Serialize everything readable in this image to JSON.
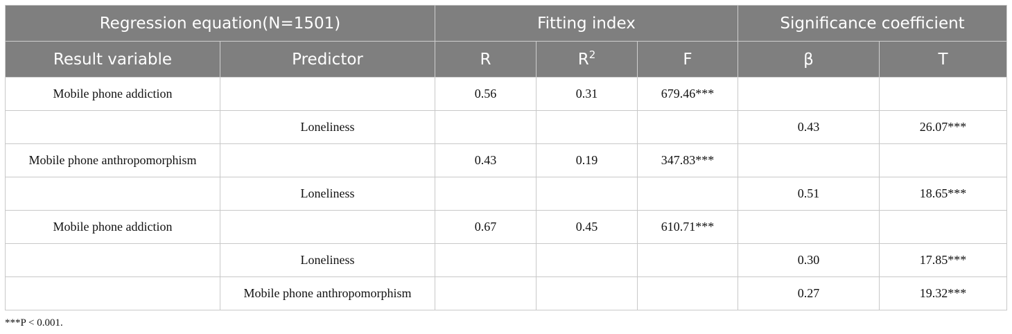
{
  "header": {
    "group_regression": "Regression equation(N=1501)",
    "group_fitting": "Fitting index",
    "group_significance": "Significance coefficient",
    "col_result": "Result variable",
    "col_predictor": "Predictor",
    "col_r": "R",
    "col_r2_base": "R",
    "col_r2_sup": "2",
    "col_f": "F",
    "col_beta": "β",
    "col_t": "T"
  },
  "rows": [
    {
      "result": "Mobile phone addiction",
      "predictor": "",
      "r": "0.56",
      "r2": "0.31",
      "f": "679.46***",
      "beta": "",
      "t": ""
    },
    {
      "result": "",
      "predictor": "Loneliness",
      "r": "",
      "r2": "",
      "f": "",
      "beta": "0.43",
      "t": "26.07***"
    },
    {
      "result": "Mobile phone anthropomorphism",
      "predictor": "",
      "r": "0.43",
      "r2": "0.19",
      "f": "347.83***",
      "beta": "",
      "t": ""
    },
    {
      "result": "",
      "predictor": "Loneliness",
      "r": "",
      "r2": "",
      "f": "",
      "beta": "0.51",
      "t": "18.65***"
    },
    {
      "result": "Mobile phone addiction",
      "predictor": "",
      "r": "0.67",
      "r2": "0.45",
      "f": "610.71***",
      "beta": "",
      "t": ""
    },
    {
      "result": "",
      "predictor": "Loneliness",
      "r": "",
      "r2": "",
      "f": "",
      "beta": "0.30",
      "t": "17.85***"
    },
    {
      "result": "",
      "predictor": "Mobile phone anthropomorphism",
      "r": "",
      "r2": "",
      "f": "",
      "beta": "0.27",
      "t": "19.32***"
    }
  ],
  "footnote": "***P < 0.001."
}
